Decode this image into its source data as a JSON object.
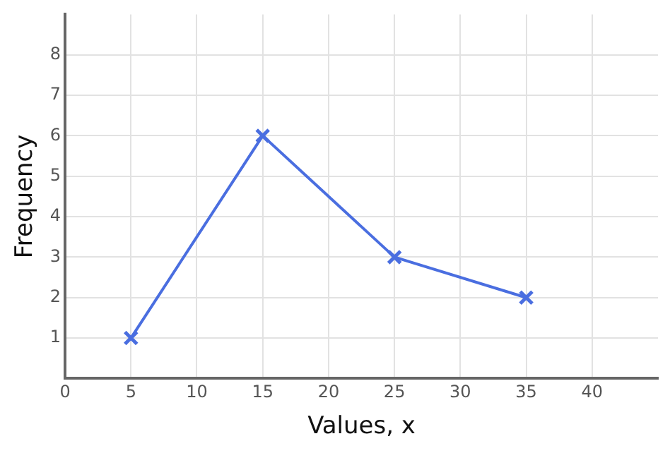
{
  "chart_data": {
    "type": "line",
    "xlabel": "Values, x",
    "ylabel": "Frequency",
    "x": [
      5,
      15,
      25,
      35
    ],
    "series": [
      {
        "color": "#4a6ee0",
        "values": [
          1,
          6,
          3,
          2
        ]
      }
    ],
    "xlim": [
      0,
      45
    ],
    "xticks": [
      0,
      5,
      10,
      15,
      20,
      25,
      30,
      35,
      40
    ],
    "ylim": [
      0,
      9
    ],
    "yticks": [
      1,
      2,
      3,
      4,
      5,
      6,
      7,
      8
    ],
    "grid": true,
    "legend": false,
    "marker": "cross",
    "line_style": "solid"
  }
}
